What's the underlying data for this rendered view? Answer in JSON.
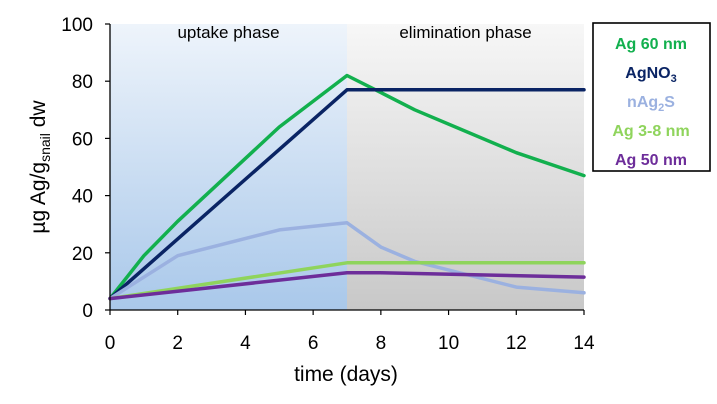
{
  "chart_data": {
    "type": "line",
    "title": "",
    "xlabel": "time (days)",
    "ylabel": {
      "pre": "µg Ag/g",
      "sub": "snail",
      "post": " dw"
    },
    "xlim": [
      0,
      14
    ],
    "ylim": [
      0,
      100
    ],
    "xticks": [
      0,
      2,
      4,
      6,
      8,
      10,
      12,
      14
    ],
    "yticks": [
      0,
      20,
      40,
      60,
      80,
      100
    ],
    "grid": false,
    "legend_placement": "right",
    "phases": [
      {
        "label": "uptake phase",
        "x_start": 0,
        "x_end": 7,
        "style": "blue-gradient"
      },
      {
        "label": "elimination phase",
        "x_start": 7,
        "x_end": 14,
        "style": "gray-gradient"
      }
    ],
    "series": [
      {
        "name": "Ag 60 nm",
        "color": "#12b04e",
        "x": [
          0,
          1,
          2,
          5,
          7,
          8,
          9,
          12,
          14
        ],
        "y": [
          4,
          19,
          31,
          64,
          82,
          76,
          70,
          55,
          47
        ]
      },
      {
        "name": "AgNO3",
        "name_parts": [
          {
            "t": "AgNO"
          },
          {
            "t": "3",
            "sub": true
          }
        ],
        "color": "#0a2464",
        "x": [
          0,
          7,
          8,
          14
        ],
        "y": [
          4,
          77,
          77,
          77
        ]
      },
      {
        "name": "nAg2S",
        "name_parts": [
          {
            "t": "nAg"
          },
          {
            "t": "2",
            "sub": true
          },
          {
            "t": "S"
          }
        ],
        "color": "#9bb1e0",
        "x": [
          0,
          2,
          5,
          7,
          8,
          9,
          12,
          14
        ],
        "y": [
          4,
          19,
          28,
          30.5,
          22,
          17,
          8,
          6
        ]
      },
      {
        "name": "Ag 3-8 nm",
        "color": "#8fd45c",
        "x": [
          0,
          7,
          14
        ],
        "y": [
          4,
          16.5,
          16.5
        ]
      },
      {
        "name": "Ag 50 nm",
        "color": "#6d2d9a",
        "x": [
          0,
          7,
          8,
          14
        ],
        "y": [
          4,
          13,
          13,
          11.5
        ]
      }
    ]
  }
}
